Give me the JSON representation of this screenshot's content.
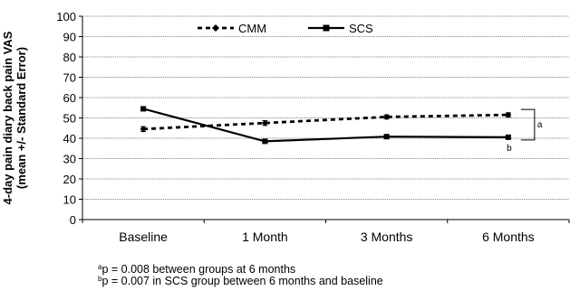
{
  "chart_data": {
    "type": "line",
    "ylabel_lines": [
      "4-day pain diary back pain VAS",
      "(mean +/- Standard Error)"
    ],
    "xlabel": "",
    "categories": [
      "Baseline",
      "1 Month",
      "3 Months",
      "6 Months"
    ],
    "ylim": [
      0,
      100
    ],
    "yticks": [
      0,
      10,
      20,
      30,
      40,
      50,
      60,
      70,
      80,
      90,
      100
    ],
    "grid": true,
    "legend_position": "top",
    "series": [
      {
        "name": "CMM",
        "style": "dashed",
        "marker": "diamond",
        "color": "#000000",
        "values": [
          44.5,
          47.5,
          50.5,
          51.5
        ],
        "errors": [
          1.2,
          1.2,
          1.0,
          1.0
        ]
      },
      {
        "name": "SCS",
        "style": "solid",
        "marker": "square",
        "color": "#000000",
        "values": [
          54.5,
          38.5,
          40.8,
          40.5
        ],
        "errors": [
          1.0,
          1.0,
          1.0,
          1.0
        ]
      }
    ],
    "annotations": [
      {
        "label": "a",
        "note": "between groups at 6 months"
      },
      {
        "label": "b",
        "note": "SCS 6 months vs baseline"
      }
    ]
  },
  "footnotes": [
    {
      "sup": "a",
      "text": "p = 0.008 between groups at 6 months"
    },
    {
      "sup": "b",
      "text": "p = 0.007 in SCS group between 6 months and baseline"
    }
  ]
}
